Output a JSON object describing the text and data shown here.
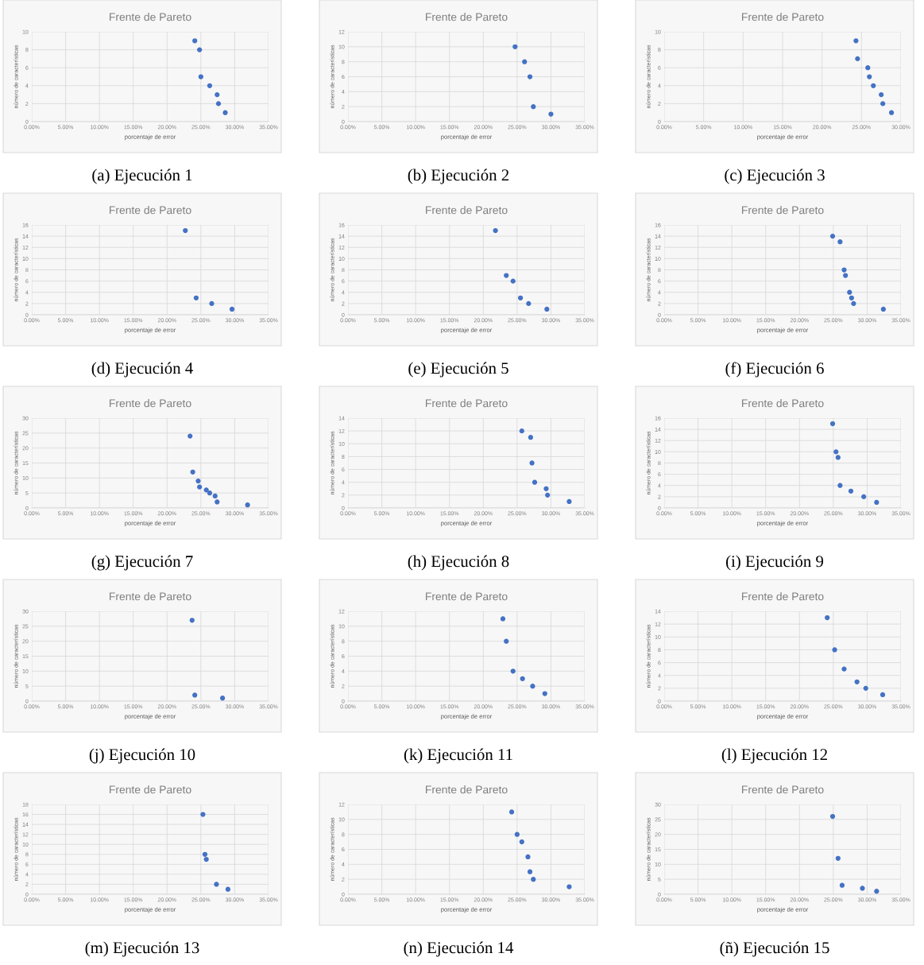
{
  "chart_data": [
    {
      "type": "scatter",
      "title": "Frente de Pareto",
      "xlabel": "porcentaje de error",
      "ylabel": "número de características",
      "annotations": [
        "(a) Ejecución 1"
      ],
      "x": [
        24.1,
        24.8,
        25.0,
        26.3,
        27.4,
        27.6,
        28.6
      ],
      "values": [
        9,
        8,
        5,
        4,
        3,
        2,
        1
      ],
      "color": "#4472c4",
      "marker": "circle",
      "grid": true,
      "xlim": [
        0,
        35
      ],
      "xticks": [
        {
          "value": 0,
          "label": "0.00%"
        },
        {
          "value": 5,
          "label": "5.00%"
        },
        {
          "value": 10,
          "label": "10.00%"
        },
        {
          "value": 15,
          "label": "15.00%"
        },
        {
          "value": 20,
          "label": "20.00%"
        },
        {
          "value": 25,
          "label": "25.00%"
        },
        {
          "value": 30,
          "label": "30.00%"
        },
        {
          "value": 35,
          "label": "35.00%"
        }
      ],
      "ylim": [
        0,
        10
      ],
      "yticks": [
        0,
        2,
        4,
        6,
        8,
        10
      ]
    },
    {
      "type": "scatter",
      "title": "Frente de Pareto",
      "xlabel": "porcentaje de error",
      "ylabel": "número de características",
      "annotations": [
        "(b) Ejecución 2"
      ],
      "x": [
        24.7,
        26.1,
        26.9,
        27.4,
        30.0
      ],
      "values": [
        10,
        8,
        6,
        2,
        1
      ],
      "color": "#4472c4",
      "marker": "circle",
      "grid": true,
      "xlim": [
        0,
        35
      ],
      "xticks": [
        {
          "value": 0,
          "label": "0.00%"
        },
        {
          "value": 5,
          "label": "5.00%"
        },
        {
          "value": 10,
          "label": "10.00%"
        },
        {
          "value": 15,
          "label": "15.00%"
        },
        {
          "value": 20,
          "label": "20.00%"
        },
        {
          "value": 25,
          "label": "25.00%"
        },
        {
          "value": 30,
          "label": "30.00%"
        },
        {
          "value": 35,
          "label": "35.00%"
        }
      ],
      "ylim": [
        0,
        12
      ],
      "yticks": [
        0,
        2,
        4,
        6,
        8,
        10,
        12
      ]
    },
    {
      "type": "scatter",
      "title": "Frente de Pareto",
      "xlabel": "porcentaje de error",
      "ylabel": "número de características",
      "annotations": [
        "(c) Ejecución 3"
      ],
      "x": [
        24.3,
        24.5,
        25.8,
        26.0,
        26.5,
        27.5,
        27.7,
        28.8
      ],
      "values": [
        9,
        7,
        6,
        5,
        4,
        3,
        2,
        1
      ],
      "color": "#4472c4",
      "marker": "circle",
      "grid": true,
      "xlim": [
        0,
        30
      ],
      "xticks": [
        {
          "value": 0,
          "label": "0.00%"
        },
        {
          "value": 5,
          "label": "5.00%"
        },
        {
          "value": 10,
          "label": "10.00%"
        },
        {
          "value": 15,
          "label": "15.00%"
        },
        {
          "value": 20,
          "label": "20.00%"
        },
        {
          "value": 25,
          "label": "25.00%"
        },
        {
          "value": 30,
          "label": "30.00%"
        }
      ],
      "ylim": [
        0,
        10
      ],
      "yticks": [
        0,
        2,
        4,
        6,
        8,
        10
      ]
    },
    {
      "type": "scatter",
      "title": "Frente de Pareto",
      "xlabel": "porcentaje de error",
      "ylabel": "número de características",
      "annotations": [
        "(d) Ejecución 4"
      ],
      "x": [
        22.7,
        24.3,
        26.6,
        29.6
      ],
      "values": [
        15,
        3,
        2,
        1
      ],
      "color": "#4472c4",
      "marker": "circle",
      "grid": true,
      "xlim": [
        0,
        35
      ],
      "xticks": [
        {
          "value": 0,
          "label": "0.00%"
        },
        {
          "value": 5,
          "label": "5.00%"
        },
        {
          "value": 10,
          "label": "10.00%"
        },
        {
          "value": 15,
          "label": "15.00%"
        },
        {
          "value": 20,
          "label": "20.00%"
        },
        {
          "value": 25,
          "label": "25.00%"
        },
        {
          "value": 30,
          "label": "30.00%"
        },
        {
          "value": 35,
          "label": "35.00%"
        }
      ],
      "ylim": [
        0,
        16
      ],
      "yticks": [
        0,
        2,
        4,
        6,
        8,
        10,
        12,
        14,
        16
      ]
    },
    {
      "type": "scatter",
      "title": "Frente de Pareto",
      "xlabel": "porcentaje de error",
      "ylabel": "número de características",
      "annotations": [
        "(e) Ejecución 5"
      ],
      "x": [
        21.8,
        23.4,
        24.4,
        25.5,
        26.7,
        29.4
      ],
      "values": [
        15,
        7,
        6,
        3,
        2,
        1
      ],
      "color": "#4472c4",
      "marker": "circle",
      "grid": true,
      "xlim": [
        0,
        35
      ],
      "xticks": [
        {
          "value": 0,
          "label": "0.00%"
        },
        {
          "value": 5,
          "label": "5.00%"
        },
        {
          "value": 10,
          "label": "10.00%"
        },
        {
          "value": 15,
          "label": "15.00%"
        },
        {
          "value": 20,
          "label": "20.00%"
        },
        {
          "value": 25,
          "label": "25.00%"
        },
        {
          "value": 30,
          "label": "30.00%"
        },
        {
          "value": 35,
          "label": "35.00%"
        }
      ],
      "ylim": [
        0,
        16
      ],
      "yticks": [
        0,
        2,
        4,
        6,
        8,
        10,
        12,
        14,
        16
      ]
    },
    {
      "type": "scatter",
      "title": "Frente de Pareto",
      "xlabel": "porcentaje de error",
      "ylabel": "número de características",
      "annotations": [
        "(f) Ejecución 6"
      ],
      "x": [
        24.9,
        26.0,
        26.6,
        26.8,
        27.4,
        27.7,
        28.0,
        32.4
      ],
      "values": [
        14,
        13,
        8,
        7,
        4,
        3,
        2,
        1
      ],
      "color": "#4472c4",
      "marker": "circle",
      "grid": true,
      "xlim": [
        0,
        35
      ],
      "xticks": [
        {
          "value": 0,
          "label": "0.00%"
        },
        {
          "value": 5,
          "label": "5.00%"
        },
        {
          "value": 10,
          "label": "10.00%"
        },
        {
          "value": 15,
          "label": "15.00%"
        },
        {
          "value": 20,
          "label": "20.00%"
        },
        {
          "value": 25,
          "label": "25.00%"
        },
        {
          "value": 30,
          "label": "30.00%"
        },
        {
          "value": 35,
          "label": "35.00%"
        }
      ],
      "ylim": [
        0,
        16
      ],
      "yticks": [
        0,
        2,
        4,
        6,
        8,
        10,
        12,
        14,
        16
      ]
    },
    {
      "type": "scatter",
      "title": "Frente de Pareto",
      "xlabel": "porcentaje de error",
      "ylabel": "número de características",
      "annotations": [
        "(g) Ejecución 7"
      ],
      "x": [
        23.4,
        23.8,
        24.6,
        24.8,
        25.8,
        26.3,
        27.1,
        27.4,
        31.9
      ],
      "values": [
        24,
        12,
        9,
        7,
        6,
        5,
        4,
        2,
        1
      ],
      "color": "#4472c4",
      "marker": "circle",
      "grid": true,
      "xlim": [
        0,
        35
      ],
      "xticks": [
        {
          "value": 0,
          "label": "0.00%"
        },
        {
          "value": 5,
          "label": "5.00%"
        },
        {
          "value": 10,
          "label": "10.00%"
        },
        {
          "value": 15,
          "label": "15.00%"
        },
        {
          "value": 20,
          "label": "20.00%"
        },
        {
          "value": 25,
          "label": "25.00%"
        },
        {
          "value": 30,
          "label": "30.00%"
        },
        {
          "value": 35,
          "label": "35.00%"
        }
      ],
      "ylim": [
        0,
        30
      ],
      "yticks": [
        0,
        5,
        10,
        15,
        20,
        25,
        30
      ]
    },
    {
      "type": "scatter",
      "title": "Frente de Pareto",
      "xlabel": "porcentaje de error",
      "ylabel": "número de características",
      "annotations": [
        "(h) Ejecución 8"
      ],
      "x": [
        25.7,
        27.0,
        27.2,
        27.6,
        29.3,
        29.5,
        32.7
      ],
      "values": [
        12,
        11,
        7,
        4,
        3,
        2,
        1
      ],
      "color": "#4472c4",
      "marker": "circle",
      "grid": true,
      "xlim": [
        0,
        35
      ],
      "xticks": [
        {
          "value": 0,
          "label": "0.00%"
        },
        {
          "value": 5,
          "label": "5.00%"
        },
        {
          "value": 10,
          "label": "10.00%"
        },
        {
          "value": 15,
          "label": "15.00%"
        },
        {
          "value": 20,
          "label": "20.00%"
        },
        {
          "value": 25,
          "label": "25.00%"
        },
        {
          "value": 30,
          "label": "30.00%"
        },
        {
          "value": 35,
          "label": "35.00%"
        }
      ],
      "ylim": [
        0,
        14
      ],
      "yticks": [
        0,
        2,
        4,
        6,
        8,
        10,
        12,
        14
      ]
    },
    {
      "type": "scatter",
      "title": "Frente de Pareto",
      "xlabel": "porcentaje de error",
      "ylabel": "número de características",
      "annotations": [
        "(i) Ejecución 9"
      ],
      "x": [
        24.9,
        25.4,
        25.7,
        26.0,
        27.6,
        29.5,
        31.4
      ],
      "values": [
        15,
        10,
        9,
        4,
        3,
        2,
        1
      ],
      "color": "#4472c4",
      "marker": "circle",
      "grid": true,
      "xlim": [
        0,
        35
      ],
      "xticks": [
        {
          "value": 0,
          "label": "0.00%"
        },
        {
          "value": 5,
          "label": "5.00%"
        },
        {
          "value": 10,
          "label": "10.00%"
        },
        {
          "value": 15,
          "label": "15.00%"
        },
        {
          "value": 20,
          "label": "20.00%"
        },
        {
          "value": 25,
          "label": "25.00%"
        },
        {
          "value": 30,
          "label": "30.00%"
        },
        {
          "value": 35,
          "label": "35.00%"
        }
      ],
      "ylim": [
        0,
        16
      ],
      "yticks": [
        0,
        2,
        4,
        6,
        8,
        10,
        12,
        14,
        16
      ]
    },
    {
      "type": "scatter",
      "title": "Frente de Pareto",
      "xlabel": "porcentaje de error",
      "ylabel": "número de características",
      "annotations": [
        "(j) Ejecución 10"
      ],
      "x": [
        23.7,
        24.1,
        28.2
      ],
      "values": [
        27,
        2,
        1
      ],
      "color": "#4472c4",
      "marker": "circle",
      "grid": true,
      "xlim": [
        0,
        35
      ],
      "xticks": [
        {
          "value": 0,
          "label": "0.00%"
        },
        {
          "value": 5,
          "label": "5.00%"
        },
        {
          "value": 10,
          "label": "10.00%"
        },
        {
          "value": 15,
          "label": "15.00%"
        },
        {
          "value": 20,
          "label": "20.00%"
        },
        {
          "value": 25,
          "label": "25.00%"
        },
        {
          "value": 30,
          "label": "30.00%"
        },
        {
          "value": 35,
          "label": "35.00%"
        }
      ],
      "ylim": [
        0,
        30
      ],
      "yticks": [
        0,
        5,
        10,
        15,
        20,
        25,
        30
      ]
    },
    {
      "type": "scatter",
      "title": "Frente de Pareto",
      "xlabel": "porcentaje de error",
      "ylabel": "número de características",
      "annotations": [
        "(k) Ejecución 11"
      ],
      "x": [
        22.9,
        23.4,
        24.4,
        25.8,
        27.3,
        29.1
      ],
      "values": [
        11,
        8,
        4,
        3,
        2,
        1
      ],
      "color": "#4472c4",
      "marker": "circle",
      "grid": true,
      "xlim": [
        0,
        35
      ],
      "xticks": [
        {
          "value": 0,
          "label": "0.00%"
        },
        {
          "value": 5,
          "label": "5.00%"
        },
        {
          "value": 10,
          "label": "10.00%"
        },
        {
          "value": 15,
          "label": "15.00%"
        },
        {
          "value": 20,
          "label": "20.00%"
        },
        {
          "value": 25,
          "label": "25.00%"
        },
        {
          "value": 30,
          "label": "30.00%"
        },
        {
          "value": 35,
          "label": "35.00%"
        }
      ],
      "ylim": [
        0,
        12
      ],
      "yticks": [
        0,
        2,
        4,
        6,
        8,
        10,
        12
      ]
    },
    {
      "type": "scatter",
      "title": "Frente de Pareto",
      "xlabel": "porcentaje de error",
      "ylabel": "número de características",
      "annotations": [
        "(l) Ejecución 12"
      ],
      "x": [
        24.1,
        25.2,
        26.6,
        28.5,
        29.8,
        32.3
      ],
      "values": [
        13,
        8,
        5,
        3,
        2,
        1
      ],
      "color": "#4472c4",
      "marker": "circle",
      "grid": true,
      "xlim": [
        0,
        35
      ],
      "xticks": [
        {
          "value": 0,
          "label": "0.00%"
        },
        {
          "value": 5,
          "label": "5.00%"
        },
        {
          "value": 10,
          "label": "10.00%"
        },
        {
          "value": 15,
          "label": "15.00%"
        },
        {
          "value": 20,
          "label": "20.00%"
        },
        {
          "value": 25,
          "label": "25.00%"
        },
        {
          "value": 30,
          "label": "30.00%"
        },
        {
          "value": 35,
          "label": "35.00%"
        }
      ],
      "ylim": [
        0,
        14
      ],
      "yticks": [
        0,
        2,
        4,
        6,
        8,
        10,
        12,
        14
      ]
    },
    {
      "type": "scatter",
      "title": "Frente de Pareto",
      "xlabel": "porcentaje de error",
      "ylabel": "número de características",
      "annotations": [
        "(m) Ejecución 13"
      ],
      "x": [
        25.3,
        25.6,
        25.8,
        27.3,
        29.0
      ],
      "values": [
        16,
        8,
        7,
        2,
        1
      ],
      "color": "#4472c4",
      "marker": "circle",
      "grid": true,
      "xlim": [
        0,
        35
      ],
      "xticks": [
        {
          "value": 0,
          "label": "0.00%"
        },
        {
          "value": 5,
          "label": "5.00%"
        },
        {
          "value": 10,
          "label": "10.00%"
        },
        {
          "value": 15,
          "label": "15.00%"
        },
        {
          "value": 20,
          "label": "20.00%"
        },
        {
          "value": 25,
          "label": "25.00%"
        },
        {
          "value": 30,
          "label": "30.00%"
        },
        {
          "value": 35,
          "label": "35.00%"
        }
      ],
      "ylim": [
        0,
        18
      ],
      "yticks": [
        0,
        2,
        4,
        6,
        8,
        10,
        12,
        14,
        16,
        18
      ]
    },
    {
      "type": "scatter",
      "title": "Frente de Pareto",
      "xlabel": "porcentaje de error",
      "ylabel": "número de características",
      "annotations": [
        "(n) Ejecución 14"
      ],
      "x": [
        24.2,
        25.0,
        25.7,
        26.6,
        26.9,
        27.4,
        32.7
      ],
      "values": [
        11,
        8,
        7,
        5,
        3,
        2,
        1
      ],
      "color": "#4472c4",
      "marker": "circle",
      "grid": true,
      "xlim": [
        0,
        35
      ],
      "xticks": [
        {
          "value": 0,
          "label": "0.00%"
        },
        {
          "value": 5,
          "label": "5.00%"
        },
        {
          "value": 10,
          "label": "10.00%"
        },
        {
          "value": 15,
          "label": "15.00%"
        },
        {
          "value": 20,
          "label": "20.00%"
        },
        {
          "value": 25,
          "label": "25.00%"
        },
        {
          "value": 30,
          "label": "30.00%"
        },
        {
          "value": 35,
          "label": "35.00%"
        }
      ],
      "ylim": [
        0,
        12
      ],
      "yticks": [
        0,
        2,
        4,
        6,
        8,
        10,
        12
      ]
    },
    {
      "type": "scatter",
      "title": "Frente de Pareto",
      "xlabel": "porcentaje de error",
      "ylabel": "número de características",
      "annotations": [
        "(ñ) Ejecución 15"
      ],
      "x": [
        24.9,
        25.7,
        26.3,
        29.3,
        31.4
      ],
      "values": [
        26,
        12,
        3,
        2,
        1
      ],
      "color": "#4472c4",
      "marker": "circle",
      "grid": true,
      "xlim": [
        0,
        35
      ],
      "xticks": [
        {
          "value": 0,
          "label": "0.00%"
        },
        {
          "value": 5,
          "label": "5.00%"
        },
        {
          "value": 10,
          "label": "10.00%"
        },
        {
          "value": 15,
          "label": "15.00%"
        },
        {
          "value": 20,
          "label": "20.00%"
        },
        {
          "value": 25,
          "label": "25.00%"
        },
        {
          "value": 30,
          "label": "30.00%"
        },
        {
          "value": 35,
          "label": "35.00%"
        }
      ],
      "ylim": [
        0,
        30
      ],
      "yticks": [
        0,
        5,
        10,
        15,
        20,
        25,
        30
      ]
    }
  ]
}
